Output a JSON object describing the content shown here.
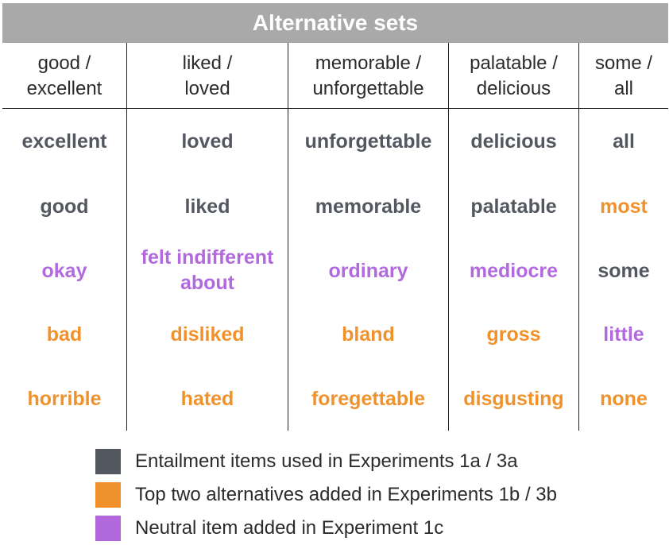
{
  "title": "Alternative sets",
  "colors": {
    "gray": "#535860",
    "orange": "#f0922c",
    "purple": "#b269de",
    "title_bg": "#a9a9a9"
  },
  "columns": [
    {
      "header": "good /\nexcellent",
      "items": [
        {
          "text": "excellent",
          "kind": "gray"
        },
        {
          "text": "good",
          "kind": "gray"
        },
        {
          "text": "okay",
          "kind": "purple"
        },
        {
          "text": "bad",
          "kind": "orange"
        },
        {
          "text": "horrible",
          "kind": "orange"
        }
      ]
    },
    {
      "header": "liked /\nloved",
      "items": [
        {
          "text": "loved",
          "kind": "gray"
        },
        {
          "text": "liked",
          "kind": "gray"
        },
        {
          "text": "felt indifferent\nabout",
          "kind": "purple"
        },
        {
          "text": "disliked",
          "kind": "orange"
        },
        {
          "text": "hated",
          "kind": "orange"
        }
      ]
    },
    {
      "header": "memorable /\nunforgettable",
      "items": [
        {
          "text": "unforgettable",
          "kind": "gray"
        },
        {
          "text": "memorable",
          "kind": "gray"
        },
        {
          "text": "ordinary",
          "kind": "purple"
        },
        {
          "text": "bland",
          "kind": "orange"
        },
        {
          "text": "foregettable",
          "kind": "orange"
        }
      ]
    },
    {
      "header": "palatable /\ndelicious",
      "items": [
        {
          "text": "delicious",
          "kind": "gray"
        },
        {
          "text": "palatable",
          "kind": "gray"
        },
        {
          "text": "mediocre",
          "kind": "purple"
        },
        {
          "text": "gross",
          "kind": "orange"
        },
        {
          "text": "disgusting",
          "kind": "orange"
        }
      ]
    },
    {
      "header": "some /\nall",
      "items": [
        {
          "text": "all",
          "kind": "gray"
        },
        {
          "text": "most",
          "kind": "orange"
        },
        {
          "text": "some",
          "kind": "gray"
        },
        {
          "text": "little",
          "kind": "purple"
        },
        {
          "text": "none",
          "kind": "orange"
        }
      ]
    }
  ],
  "legend": [
    {
      "label": "Entailment items used in Experiments 1a / 3a",
      "kind": "gray"
    },
    {
      "label": "Top two alternatives added in Experiments 1b / 3b",
      "kind": "orange"
    },
    {
      "label": "Neutral item added in Experiment 1c",
      "kind": "purple"
    }
  ]
}
